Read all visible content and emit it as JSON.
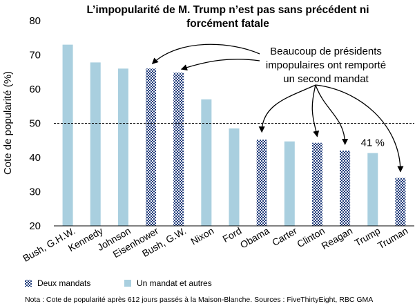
{
  "chart_data": {
    "type": "bar",
    "title_lines": [
      "L’impopularité de M. Trump n’est pas sans précédent ni",
      "forcément fatale"
    ],
    "ylabel": "Cote de popularité (%)",
    "xlabel": "",
    "ylim": [
      20,
      80
    ],
    "yticks": [
      20,
      30,
      40,
      50,
      60,
      70,
      80
    ],
    "reference_line": 50,
    "categories": [
      "Bush, G.H.W.",
      "Kennedy",
      "Johnson",
      "Eisenhower",
      "Bush, G.W.",
      "Nixon",
      "Ford",
      "Obama",
      "Carter",
      "Clinton",
      "Reagan",
      "Trump",
      "Truman"
    ],
    "values": [
      73,
      67.8,
      66,
      66,
      64.8,
      57,
      48.5,
      45.2,
      44.7,
      44.3,
      42,
      41.3,
      34
    ],
    "groups": [
      "single",
      "single",
      "single",
      "double",
      "double",
      "single",
      "single",
      "double",
      "single",
      "double",
      "double",
      "single",
      "double"
    ],
    "series": [
      {
        "key": "double",
        "name": "Deux mandats",
        "color": "#1f3b7a"
      },
      {
        "key": "single",
        "name": "Un mandat et autres",
        "color": "#a9cfdf"
      }
    ],
    "annotation": {
      "lines": [
        "Beaucoup de présidents",
        "impopulaires ont remporté",
        "un second mandat"
      ],
      "targets": [
        "Eisenhower",
        "Bush, G.W.",
        "Obama",
        "Clinton",
        "Reagan",
        "Truman"
      ]
    },
    "data_labels": [
      {
        "category": "Trump",
        "text": "41 %"
      }
    ],
    "note": "Nota : Cote de popularité après 612 jours passés à la Maison-Blanche. Sources : FiveThirtyEight, RBC GMA"
  }
}
